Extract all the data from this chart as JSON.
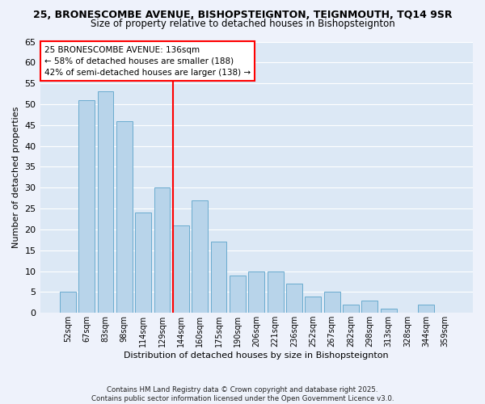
{
  "title": "25, BRONESCOMBE AVENUE, BISHOPSTEIGNTON, TEIGNMOUTH, TQ14 9SR",
  "subtitle": "Size of property relative to detached houses in Bishopsteignton",
  "xlabel": "Distribution of detached houses by size in Bishopsteignton",
  "ylabel": "Number of detached properties",
  "bar_labels": [
    "52sqm",
    "67sqm",
    "83sqm",
    "98sqm",
    "114sqm",
    "129sqm",
    "144sqm",
    "160sqm",
    "175sqm",
    "190sqm",
    "206sqm",
    "221sqm",
    "236sqm",
    "252sqm",
    "267sqm",
    "282sqm",
    "298sqm",
    "313sqm",
    "328sqm",
    "344sqm",
    "359sqm"
  ],
  "bar_values": [
    5,
    51,
    53,
    46,
    24,
    30,
    21,
    27,
    17,
    9,
    10,
    10,
    7,
    4,
    5,
    2,
    3,
    1,
    0,
    2,
    0
  ],
  "bar_color": "#b8d4ea",
  "bar_edge_color": "#6aabcf",
  "highlight_line_index": 6,
  "ylim": [
    0,
    65
  ],
  "yticks": [
    0,
    5,
    10,
    15,
    20,
    25,
    30,
    35,
    40,
    45,
    50,
    55,
    60,
    65
  ],
  "annotation_title": "25 BRONESCOMBE AVENUE: 136sqm",
  "annotation_line1": "← 58% of detached houses are smaller (188)",
  "annotation_line2": "42% of semi-detached houses are larger (138) →",
  "footer_line1": "Contains HM Land Registry data © Crown copyright and database right 2025.",
  "footer_line2": "Contains public sector information licensed under the Open Government Licence v3.0.",
  "bg_color": "#eef2fb",
  "plot_bg_color": "#dce8f5",
  "grid_color": "#ffffff",
  "title_fontsize": 9,
  "subtitle_fontsize": 8.5,
  "ylabel_fontsize": 8,
  "xlabel_fontsize": 8,
  "ytick_fontsize": 8,
  "xtick_fontsize": 7
}
